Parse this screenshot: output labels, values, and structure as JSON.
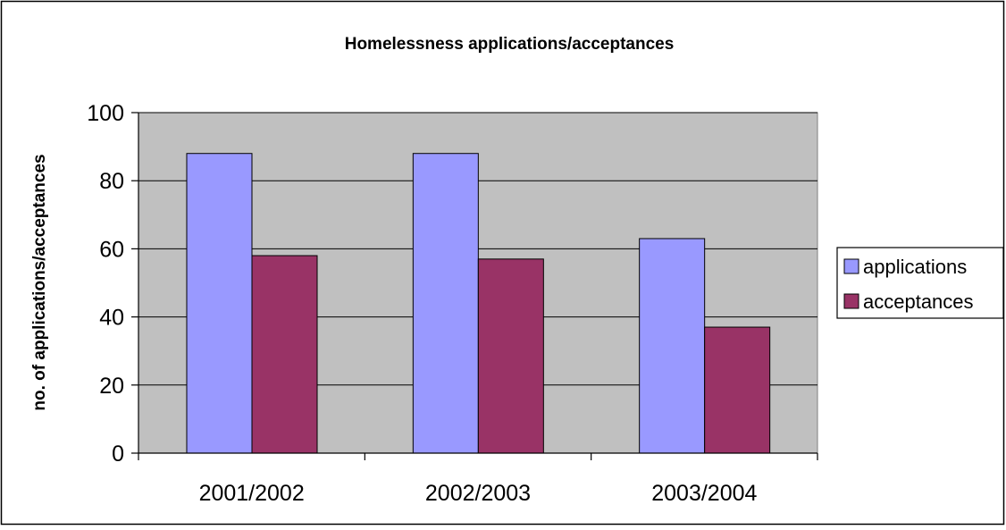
{
  "chart_data": {
    "type": "bar",
    "title": "Homelessness applications/acceptances",
    "xlabel": "",
    "ylabel": "no. of applications/acceptances",
    "categories": [
      "2001/2002",
      "2002/2003",
      "2003/2004"
    ],
    "series": [
      {
        "name": "applications",
        "values": [
          88,
          88,
          63
        ],
        "color": "#9999ff"
      },
      {
        "name": "acceptances",
        "values": [
          58,
          57,
          37
        ],
        "color": "#993366"
      }
    ],
    "ylim": [
      0,
      100
    ],
    "yticks": [
      0,
      20,
      40,
      60,
      80,
      100
    ],
    "grid": true,
    "legend_position": "right",
    "plot_background": "#c0c0c0"
  }
}
